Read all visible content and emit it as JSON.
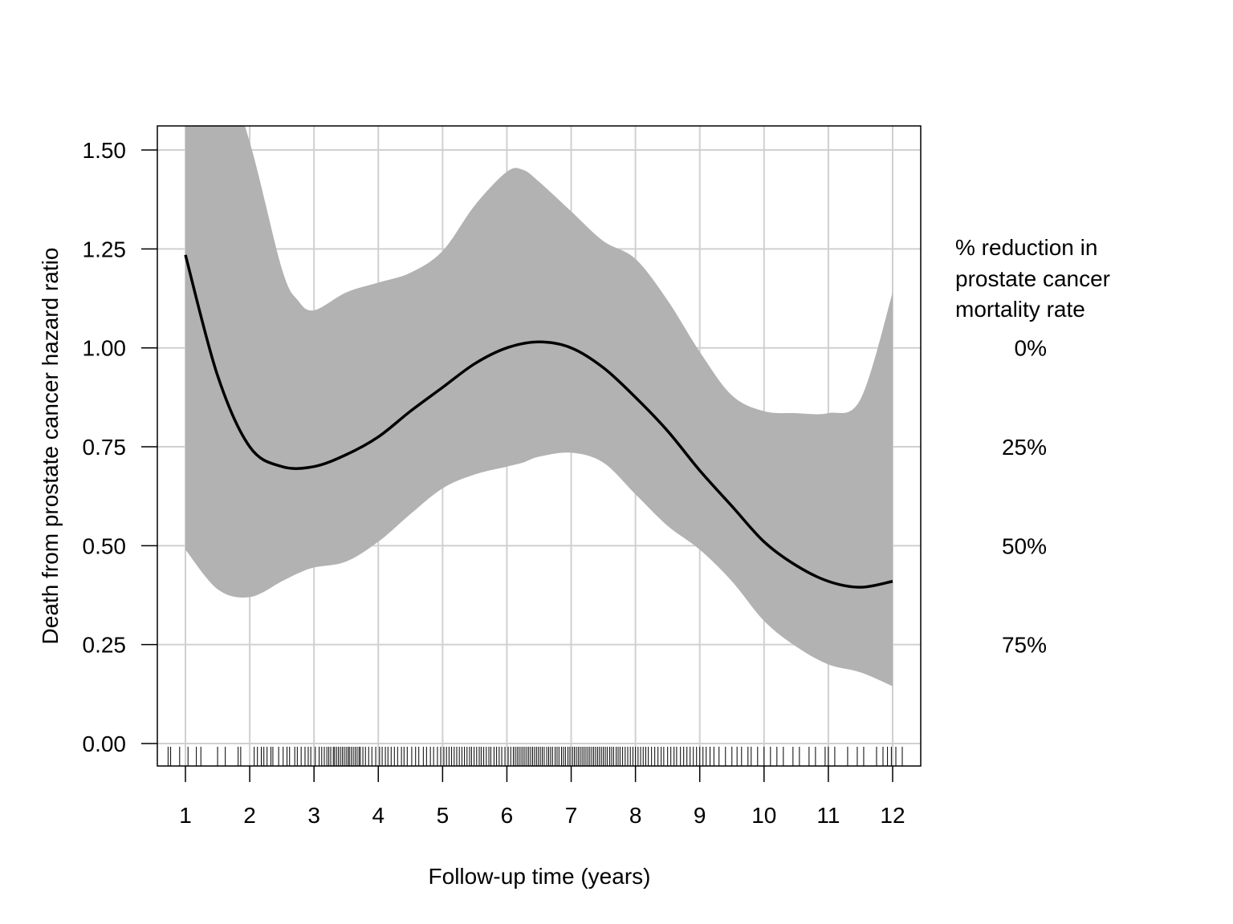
{
  "chart_data": {
    "type": "line",
    "title": "",
    "xlabel": "Follow-up time (years)",
    "ylabel": "Death from prostate cancer hazard ratio",
    "xlim": [
      0.56,
      12.43
    ],
    "ylim": [
      -0.06,
      1.56
    ],
    "x_ticks": [
      1,
      2,
      3,
      4,
      5,
      6,
      7,
      8,
      9,
      10,
      11,
      12
    ],
    "x_tick_labels": [
      "1",
      "2",
      "3",
      "4",
      "5",
      "6",
      "7",
      "8",
      "9",
      "10",
      "11",
      "12"
    ],
    "y_ticks": [
      0,
      0.25,
      0.5,
      0.75,
      1.0,
      1.25,
      1.5
    ],
    "y_tick_labels": [
      "0.00",
      "0.25",
      "0.50",
      "0.75",
      "1.00",
      "1.25",
      "1.50"
    ],
    "grid": true,
    "series": [
      {
        "x": [
          1,
          1.5,
          2,
          2.5,
          3,
          3.5,
          4,
          4.5,
          5,
          5.5,
          6,
          6.5,
          7,
          7.5,
          8,
          8.5,
          9,
          9.5,
          10,
          10.5,
          11,
          11.5,
          12
        ],
        "y": [
          1.235,
          0.93,
          0.75,
          0.7,
          0.7,
          0.73,
          0.775,
          0.84,
          0.9,
          0.96,
          1.0,
          1.015,
          1.0,
          0.95,
          0.875,
          0.79,
          0.69,
          0.6,
          0.51,
          0.45,
          0.41,
          0.395,
          0.41
        ],
        "color": "#000000"
      }
    ],
    "confidence_band": {
      "x": [
        1,
        1.5,
        2,
        2.5,
        2.75,
        3,
        3.5,
        4,
        4.5,
        5,
        5.5,
        6,
        6.25,
        6.5,
        7,
        7.5,
        8,
        8.5,
        9,
        9.5,
        10,
        10.5,
        11,
        11.5,
        12
      ],
      "upper": [
        1.75,
        1.75,
        1.52,
        1.2,
        1.12,
        1.095,
        1.14,
        1.165,
        1.19,
        1.245,
        1.36,
        1.445,
        1.45,
        1.42,
        1.345,
        1.27,
        1.225,
        1.12,
        0.99,
        0.88,
        0.84,
        0.835,
        0.835,
        0.87,
        1.14
      ],
      "lower": [
        0.49,
        0.39,
        0.37,
        0.41,
        0.43,
        0.445,
        0.46,
        0.51,
        0.58,
        0.645,
        0.68,
        0.7,
        0.71,
        0.725,
        0.735,
        0.71,
        0.63,
        0.55,
        0.49,
        0.41,
        0.31,
        0.245,
        0.2,
        0.18,
        0.145
      ],
      "color": "#b2b2b2"
    },
    "rug": [
      0.73,
      0.77,
      0.91,
      1.04,
      1.17,
      1.24,
      1.5,
      1.62,
      1.82,
      1.86,
      2.07,
      2.12,
      2.18,
      2.22,
      2.27,
      2.33,
      2.36,
      2.45,
      2.52,
      2.58,
      2.62,
      2.7,
      2.74,
      2.8,
      2.86,
      2.91,
      2.95,
      3.02,
      3.08,
      3.12,
      3.16,
      3.2,
      3.23,
      3.26,
      3.3,
      3.32,
      3.35,
      3.38,
      3.41,
      3.44,
      3.47,
      3.5,
      3.53,
      3.55,
      3.58,
      3.61,
      3.64,
      3.67,
      3.7,
      3.72,
      3.76,
      3.8,
      3.85,
      3.9,
      3.96,
      4.02,
      4.06,
      4.11,
      4.15,
      4.2,
      4.25,
      4.3,
      4.36,
      4.4,
      4.45,
      4.52,
      4.58,
      4.63,
      4.7,
      4.75,
      4.81,
      4.86,
      4.92,
      4.97,
      5.02,
      5.06,
      5.1,
      5.14,
      5.18,
      5.22,
      5.26,
      5.3,
      5.34,
      5.38,
      5.42,
      5.45,
      5.49,
      5.53,
      5.57,
      5.6,
      5.64,
      5.68,
      5.72,
      5.75,
      5.8,
      5.84,
      5.88,
      5.92,
      5.97,
      6.02,
      6.06,
      6.1,
      6.13,
      6.16,
      6.19,
      6.22,
      6.25,
      6.28,
      6.31,
      6.34,
      6.37,
      6.4,
      6.43,
      6.46,
      6.49,
      6.52,
      6.55,
      6.58,
      6.62,
      6.65,
      6.68,
      6.71,
      6.75,
      6.78,
      6.81,
      6.85,
      6.88,
      6.91,
      6.95,
      6.98,
      7.02,
      7.05,
      7.08,
      7.11,
      7.14,
      7.17,
      7.2,
      7.23,
      7.26,
      7.29,
      7.32,
      7.35,
      7.38,
      7.41,
      7.44,
      7.47,
      7.5,
      7.53,
      7.56,
      7.6,
      7.63,
      7.66,
      7.7,
      7.73,
      7.76,
      7.8,
      7.84,
      7.88,
      7.92,
      7.96,
      8.0,
      8.04,
      8.08,
      8.12,
      8.16,
      8.2,
      8.25,
      8.3,
      8.35,
      8.4,
      8.44,
      8.5,
      8.55,
      8.6,
      8.64,
      8.7,
      8.75,
      8.8,
      8.85,
      8.9,
      8.95,
      9.0,
      9.05,
      9.1,
      9.16,
      9.22,
      9.3,
      9.4,
      9.5,
      9.58,
      9.65,
      9.75,
      9.8,
      9.9,
      10.0,
      10.1,
      10.2,
      10.3,
      10.45,
      10.55,
      10.7,
      10.8,
      10.95,
      11.0,
      11.1,
      11.3,
      11.45,
      11.55,
      11.75,
      11.85,
      11.92,
      11.98,
      12.05,
      12.15
    ],
    "secondary_axis": {
      "title_lines": [
        "% reduction in",
        "prostate cancer",
        "mortality rate"
      ],
      "labels": [
        {
          "y": 1.0,
          "text": "0%"
        },
        {
          "y": 0.75,
          "text": "25%"
        },
        {
          "y": 0.5,
          "text": "50%"
        },
        {
          "y": 0.25,
          "text": "75%"
        }
      ]
    }
  }
}
